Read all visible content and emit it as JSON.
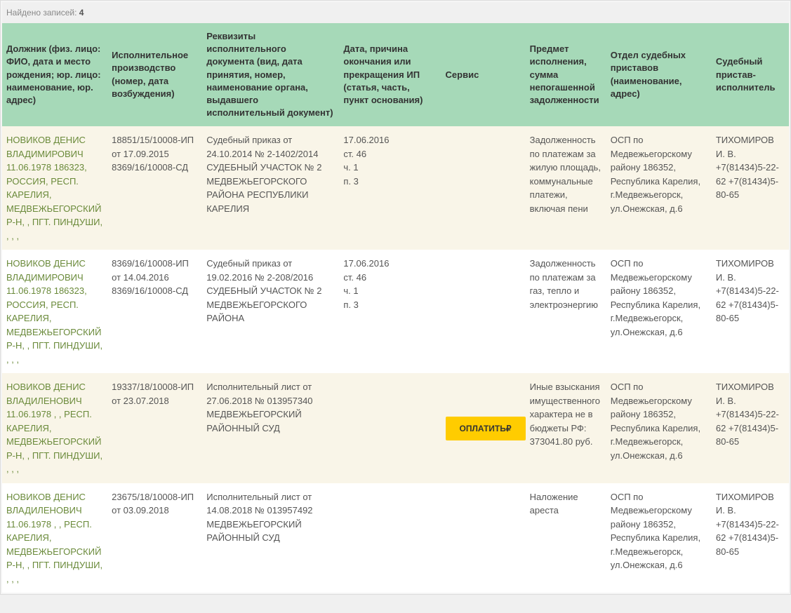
{
  "records_label": "Найдено записей:",
  "records_count": "4",
  "colors": {
    "header_bg": "#a6d9b8",
    "row_odd_bg": "#f9f5e8",
    "row_even_bg": "#ffffff",
    "debtor_text": "#6a8a3a",
    "button_bg": "#ffcc00",
    "page_bg": "#f0f0f0"
  },
  "columns": [
    "Должник (физ. лицо: ФИО, дата и место рождения; юр. лицо: наименование, юр. адрес)",
    "Исполнительное производство (номер, дата возбуждения)",
    "Реквизиты исполнительного документа (вид, дата принятия, номер, наименование органа, выдавшего исполнительный документ)",
    "Дата, причина окончания или прекращения ИП (статья, часть, пункт основания)",
    "Сервис",
    "Предмет исполнения, сумма непогашенной задолженности",
    "Отдел судебных приставов (наименование, адрес)",
    "Судебный пристав-исполнитель"
  ],
  "pay_button_label": "ОПЛАТИТЬ₽",
  "rows": [
    {
      "debtor": "НОВИКОВ ДЕНИС ВЛАДИМИРОВИЧ 11.06.1978 186323, РОССИЯ, РЕСП. КАРЕЛИЯ, МЕДВЕЖЬЕГОРСКИЙ Р-Н, , ПГТ. ПИНДУШИ, , , ,",
      "proceeding": "18851/15/10008-ИП от 17.09.2015 8369/16/10008-СД",
      "document": "Судебный приказ от 24.10.2014 № 2-1402/2014 СУДЕБНЫЙ УЧАСТОК № 2 МЕДВЕЖЬЕГОРСКОГО РАЙОНА РЕСПУБЛИКИ КАРЕЛИЯ",
      "termination": "17.06.2016\nст. 46\nч. 1\nп. 3",
      "service": "",
      "subject": "Задолженность по платежам за жилую площадь, коммунальные платежи, включая пени",
      "department": "ОСП по Медвежьегорскому району 186352, Республика Карелия, г.Медвежьегорск, ул.Онежская, д.6",
      "bailiff": "ТИХОМИРОВ И. В. +7(81434)5-22-62 +7(81434)5-80-65"
    },
    {
      "debtor": "НОВИКОВ ДЕНИС ВЛАДИМИРОВИЧ 11.06.1978 186323, РОССИЯ, РЕСП. КАРЕЛИЯ, МЕДВЕЖЬЕГОРСКИЙ Р-Н, , ПГТ. ПИНДУШИ, , , ,",
      "proceeding": "8369/16/10008-ИП от 14.04.2016 8369/16/10008-СД",
      "document": "Судебный приказ от 19.02.2016 № 2-208/2016 СУДЕБНЫЙ УЧАСТОК № 2 МЕДВЕЖЬЕГОРСКОГО РАЙОНА",
      "termination": "17.06.2016\nст. 46\nч. 1\nп. 3",
      "service": "",
      "subject": "Задолженность по платежам за газ, тепло и электроэнергию",
      "department": "ОСП по Медвежьегорскому району 186352, Республика Карелия, г.Медвежьегорск, ул.Онежская, д.6",
      "bailiff": "ТИХОМИРОВ И. В. +7(81434)5-22-62 +7(81434)5-80-65"
    },
    {
      "debtor": "НОВИКОВ ДЕНИС ВЛАДИЛЕНОВИЧ 11.06.1978 , , РЕСП. КАРЕЛИЯ, МЕДВЕЖЬЕГОРСКИЙ Р-Н, , ПГТ. ПИНДУШИ, , , ,",
      "proceeding": "19337/18/10008-ИП от 23.07.2018",
      "document": "Исполнительный лист от 27.06.2018 № 013957340 МЕДВЕЖЬЕГОРСКИЙ РАЙОННЫЙ СУД",
      "termination": "",
      "service": "pay_button",
      "subject": "Иные взыскания имущественного характера не в бюджеты РФ: 373041.80 руб.",
      "department": "ОСП по Медвежьегорскому району 186352, Республика Карелия, г.Медвежьегорск, ул.Онежская, д.6",
      "bailiff": "ТИХОМИРОВ И. В. +7(81434)5-22-62 +7(81434)5-80-65"
    },
    {
      "debtor": "НОВИКОВ ДЕНИС ВЛАДИЛЕНОВИЧ 11.06.1978 , , РЕСП. КАРЕЛИЯ, МЕДВЕЖЬЕГОРСКИЙ Р-Н, , ПГТ. ПИНДУШИ, , , ,",
      "proceeding": "23675/18/10008-ИП от 03.09.2018",
      "document": "Исполнительный лист от 14.08.2018 № 013957492 МЕДВЕЖЬЕГОРСКИЙ РАЙОННЫЙ СУД",
      "termination": "",
      "service": "",
      "subject": "Наложение ареста",
      "department": "ОСП по Медвежьегорскому району 186352, Республика Карелия, г.Медвежьегорск, ул.Онежская, д.6",
      "bailiff": "ТИХОМИРОВ И. В. +7(81434)5-22-62 +7(81434)5-80-65"
    }
  ]
}
